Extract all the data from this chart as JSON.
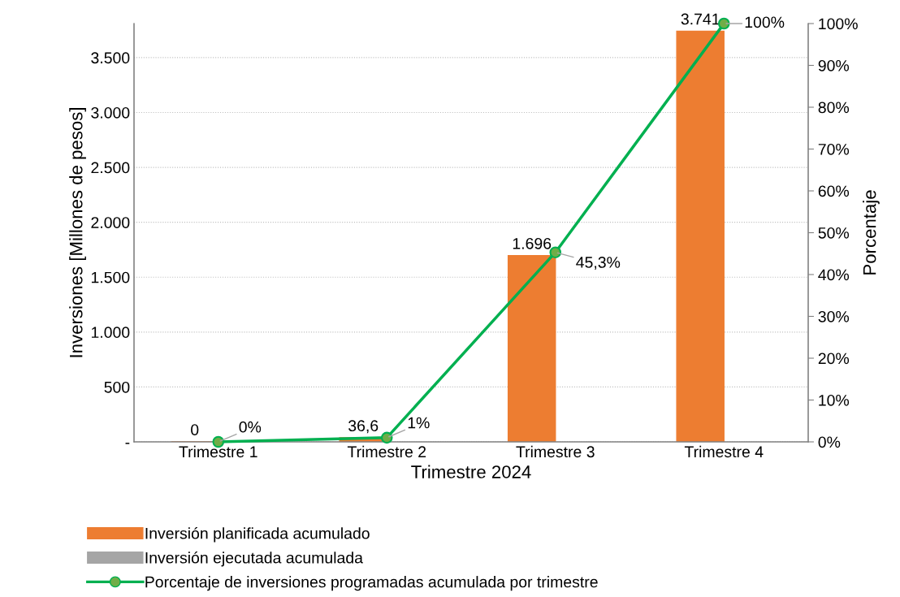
{
  "chart_data": {
    "type": "bar",
    "xlabel": "Trimestre 2024",
    "ylabel": "Inversiones [Millones de pesos]",
    "y2label": "Porcentaje",
    "categories": [
      "Trimestre 1",
      "Trimestre 2",
      "Trimestre 3",
      "Trimestre 4"
    ],
    "series": [
      {
        "name": "Inversión planificada acumulado",
        "color": "#ed7d31",
        "values": [
          0,
          36.6,
          1696,
          3741
        ],
        "value_labels": [
          "0",
          "36,6",
          "1.696",
          "3.741"
        ]
      },
      {
        "name": "Inversión ejecutada acumulada",
        "color": "#a5a5a5",
        "values": [
          null,
          null,
          null,
          null
        ]
      },
      {
        "name": "Porcentaje de inversiones programadas acumulada por trimestre",
        "type": "line",
        "axis": "y2",
        "color": "#00b050",
        "marker": "circle",
        "line_style": "solid",
        "values": [
          0,
          1,
          45.3,
          100
        ],
        "value_labels": [
          "0%",
          "1%",
          "45,3%",
          "100%"
        ]
      }
    ],
    "ylim": [
      0,
      3810
    ],
    "yticks": [
      {
        "value": 0,
        "label": "-"
      },
      {
        "value": 500,
        "label": "500"
      },
      {
        "value": 1000,
        "label": "1.000"
      },
      {
        "value": 1500,
        "label": "1.500"
      },
      {
        "value": 2000,
        "label": "2.000"
      },
      {
        "value": 2500,
        "label": "2.500"
      },
      {
        "value": 3000,
        "label": "3.000"
      },
      {
        "value": 3500,
        "label": "3.500"
      }
    ],
    "y2lim": [
      0,
      100
    ],
    "y2ticks": [
      {
        "value": 0,
        "label": "0%"
      },
      {
        "value": 10,
        "label": "10%"
      },
      {
        "value": 20,
        "label": "20%"
      },
      {
        "value": 30,
        "label": "30%"
      },
      {
        "value": 40,
        "label": "40%"
      },
      {
        "value": 50,
        "label": "50%"
      },
      {
        "value": 60,
        "label": "60%"
      },
      {
        "value": 70,
        "label": "70%"
      },
      {
        "value": 80,
        "label": "80%"
      },
      {
        "value": 90,
        "label": "90%"
      },
      {
        "value": 100,
        "label": "100%"
      }
    ],
    "grid": "y",
    "legend": "bottom"
  }
}
